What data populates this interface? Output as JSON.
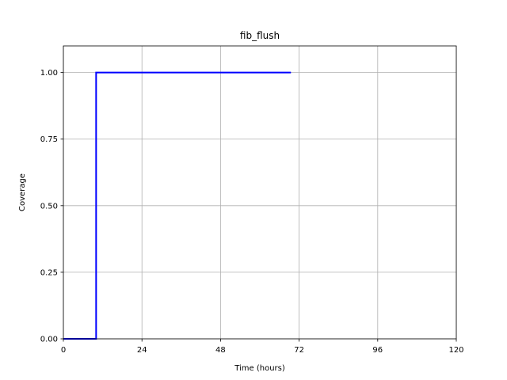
{
  "chart_data": {
    "type": "line",
    "title": "fib_flush",
    "xlabel": "Time (hours)",
    "ylabel": "Coverage",
    "xlim": [
      0,
      120
    ],
    "ylim": [
      0,
      1.1
    ],
    "xticks": [
      0,
      24,
      48,
      72,
      96,
      120
    ],
    "xtick_labels": [
      "0",
      "24",
      "48",
      "72",
      "96",
      "120"
    ],
    "yticks": [
      0,
      0.25,
      0.5,
      0.75,
      1.0
    ],
    "ytick_labels": [
      "0.00",
      "0.25",
      "0.50",
      "0.75",
      "1.00"
    ],
    "grid": true,
    "legend": null,
    "series": [
      {
        "color": "#0000ff",
        "step": true,
        "points": [
          {
            "x": 0,
            "y": 0
          },
          {
            "x": 10,
            "y": 0
          },
          {
            "x": 10,
            "y": 1.0
          },
          {
            "x": 69.5,
            "y": 1.0
          }
        ]
      }
    ]
  }
}
